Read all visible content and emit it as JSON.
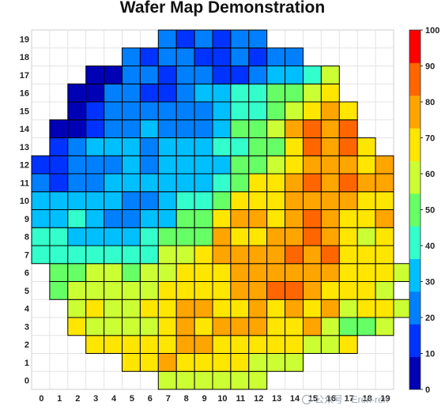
{
  "chart_data": {
    "type": "heatmap",
    "title": "Wafer Map Demonstration",
    "xlabel": "",
    "ylabel": "",
    "x_categories": [
      0,
      1,
      2,
      3,
      4,
      5,
      6,
      7,
      8,
      9,
      10,
      11,
      12,
      13,
      14,
      15,
      16,
      17,
      18,
      19
    ],
    "y_categories": [
      0,
      1,
      2,
      3,
      4,
      5,
      6,
      7,
      8,
      9,
      10,
      11,
      12,
      13,
      14,
      15,
      16,
      17,
      18,
      19
    ],
    "colorbar": {
      "min": 0,
      "max": 100,
      "ticks": [
        0,
        10,
        20,
        30,
        40,
        50,
        60,
        70,
        80,
        90,
        100
      ],
      "colors": [
        "#0000b4",
        "#0033ff",
        "#0080ff",
        "#00bfff",
        "#33ffcc",
        "#66ff66",
        "#ccff33",
        "#ffe600",
        "#ffa500",
        "#ff6600",
        "#ff0000"
      ]
    },
    "grid": true,
    "rows": [
      {
        "y": 0,
        "x_start": 7,
        "values": [
          65,
          65,
          65,
          65,
          65,
          65
        ]
      },
      {
        "y": 1,
        "x_start": 5,
        "values": [
          75,
          75,
          85,
          75,
          75,
          75,
          75,
          65,
          65,
          65
        ]
      },
      {
        "y": 2,
        "x_start": 3,
        "values": [
          75,
          75,
          75,
          75,
          75,
          85,
          85,
          75,
          75,
          75,
          75,
          75,
          65,
          65,
          75
        ]
      },
      {
        "y": 3,
        "x_start": 2,
        "values": [
          75,
          65,
          65,
          65,
          65,
          75,
          85,
          75,
          85,
          85,
          85,
          75,
          75,
          85,
          65,
          55,
          55,
          65
        ]
      },
      {
        "y": 4,
        "x_start": 2,
        "values": [
          65,
          75,
          65,
          65,
          75,
          75,
          85,
          85,
          75,
          75,
          85,
          75,
          85,
          75,
          85,
          65,
          75,
          75,
          65
        ]
      },
      {
        "y": 5,
        "x_start": 1,
        "values": [
          55,
          65,
          65,
          65,
          65,
          65,
          75,
          75,
          75,
          75,
          85,
          85,
          95,
          95,
          85,
          75,
          75,
          75,
          65
        ]
      },
      {
        "y": 6,
        "x_start": 1,
        "values": [
          55,
          55,
          65,
          65,
          55,
          65,
          65,
          75,
          75,
          75,
          85,
          85,
          85,
          85,
          85,
          85,
          75,
          75,
          75,
          65
        ]
      },
      {
        "y": 7,
        "x_start": 0,
        "values": [
          45,
          45,
          45,
          45,
          45,
          45,
          45,
          65,
          65,
          75,
          85,
          85,
          85,
          85,
          95,
          85,
          95,
          75,
          75,
          75
        ]
      },
      {
        "y": 8,
        "x_start": 0,
        "values": [
          45,
          45,
          35,
          35,
          35,
          35,
          45,
          55,
          55,
          55,
          85,
          75,
          75,
          85,
          85,
          95,
          85,
          75,
          65,
          75
        ]
      },
      {
        "y": 9,
        "x_start": 0,
        "values": [
          35,
          35,
          45,
          35,
          25,
          25,
          35,
          35,
          55,
          55,
          75,
          85,
          85,
          75,
          85,
          95,
          85,
          75,
          75,
          85
        ]
      },
      {
        "y": 10,
        "x_start": 0,
        "values": [
          35,
          35,
          35,
          35,
          35,
          25,
          25,
          35,
          45,
          45,
          55,
          75,
          75,
          75,
          85,
          85,
          85,
          85,
          75,
          75
        ]
      },
      {
        "y": 11,
        "x_start": 0,
        "values": [
          25,
          15,
          25,
          25,
          35,
          35,
          35,
          35,
          35,
          35,
          45,
          55,
          75,
          75,
          85,
          95,
          85,
          95,
          85,
          85
        ]
      },
      {
        "y": 12,
        "x_start": 0,
        "values": [
          15,
          15,
          25,
          25,
          25,
          35,
          25,
          35,
          35,
          35,
          35,
          55,
          55,
          65,
          75,
          85,
          85,
          85,
          75,
          85
        ]
      },
      {
        "y": 13,
        "x_start": 1,
        "values": [
          15,
          25,
          35,
          35,
          35,
          25,
          35,
          35,
          35,
          45,
          45,
          55,
          55,
          75,
          95,
          85,
          95,
          75
        ]
      },
      {
        "y": 14,
        "x_start": 1,
        "values": [
          5,
          5,
          15,
          25,
          25,
          35,
          25,
          25,
          25,
          35,
          55,
          55,
          65,
          85,
          95,
          85,
          95
        ]
      },
      {
        "y": 15,
        "x_start": 2,
        "values": [
          5,
          15,
          25,
          25,
          25,
          25,
          25,
          25,
          35,
          45,
          45,
          55,
          65,
          75,
          85,
          75
        ]
      },
      {
        "y": 16,
        "x_start": 2,
        "values": [
          5,
          5,
          25,
          25,
          15,
          15,
          25,
          35,
          35,
          45,
          45,
          55,
          55,
          65,
          75
        ]
      },
      {
        "y": 17,
        "x_start": 3,
        "values": [
          5,
          5,
          25,
          25,
          15,
          25,
          25,
          15,
          15,
          25,
          35,
          35,
          45,
          65
        ]
      },
      {
        "y": 18,
        "x_start": 5,
        "values": [
          25,
          15,
          25,
          25,
          15,
          15,
          25,
          15,
          25,
          25
        ]
      },
      {
        "y": 19,
        "x_start": 7,
        "values": [
          25,
          15,
          25,
          15,
          25,
          25
        ]
      }
    ]
  },
  "watermark": "公众号 · Eren-ren"
}
